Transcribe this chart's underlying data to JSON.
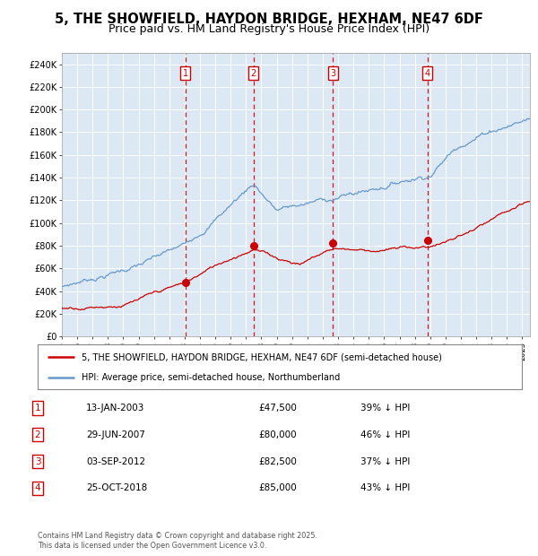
{
  "title": "5, THE SHOWFIELD, HAYDON BRIDGE, HEXHAM, NE47 6DF",
  "subtitle": "Price paid vs. HM Land Registry's House Price Index (HPI)",
  "title_fontsize": 10.5,
  "subtitle_fontsize": 9,
  "plot_bg_color": "#dce9f5",
  "ylim": [
    0,
    250000
  ],
  "xlim_start": 1995.0,
  "xlim_end": 2025.5,
  "yticks": [
    0,
    20000,
    40000,
    60000,
    80000,
    100000,
    120000,
    140000,
    160000,
    180000,
    200000,
    220000,
    240000
  ],
  "ytick_labels": [
    "£0",
    "£20K",
    "£40K",
    "£60K",
    "£80K",
    "£100K",
    "£120K",
    "£140K",
    "£160K",
    "£180K",
    "£200K",
    "£220K",
    "£240K"
  ],
  "xtick_years": [
    1995,
    1996,
    1997,
    1998,
    1999,
    2000,
    2001,
    2002,
    2003,
    2004,
    2005,
    2006,
    2007,
    2008,
    2009,
    2010,
    2011,
    2012,
    2013,
    2014,
    2015,
    2016,
    2017,
    2018,
    2019,
    2020,
    2021,
    2022,
    2023,
    2024,
    2025
  ],
  "red_line_color": "#cc0000",
  "blue_line_color": "#6699cc",
  "sale_line_color": "#cc0000",
  "sale_label_color": "#cc0000",
  "sales": [
    {
      "num": 1,
      "year": 2003.04,
      "price": 47500,
      "label": "1"
    },
    {
      "num": 2,
      "year": 2007.49,
      "price": 80000,
      "label": "2"
    },
    {
      "num": 3,
      "year": 2012.67,
      "price": 82500,
      "label": "3"
    },
    {
      "num": 4,
      "year": 2018.81,
      "price": 85000,
      "label": "4"
    }
  ],
  "legend_entries": [
    {
      "color": "#cc0000",
      "label": "5, THE SHOWFIELD, HAYDON BRIDGE, HEXHAM, NE47 6DF (semi-detached house)"
    },
    {
      "color": "#6699cc",
      "label": "HPI: Average price, semi-detached house, Northumberland"
    }
  ],
  "table_rows": [
    {
      "num": "1",
      "date": "13-JAN-2003",
      "price": "£47,500",
      "pct": "39% ↓ HPI"
    },
    {
      "num": "2",
      "date": "29-JUN-2007",
      "price": "£80,000",
      "pct": "46% ↓ HPI"
    },
    {
      "num": "3",
      "date": "03-SEP-2012",
      "price": "£82,500",
      "pct": "37% ↓ HPI"
    },
    {
      "num": "4",
      "date": "25-OCT-2018",
      "price": "£85,000",
      "pct": "43% ↓ HPI"
    }
  ],
  "footnote": "Contains HM Land Registry data © Crown copyright and database right 2025.\nThis data is licensed under the Open Government Licence v3.0."
}
